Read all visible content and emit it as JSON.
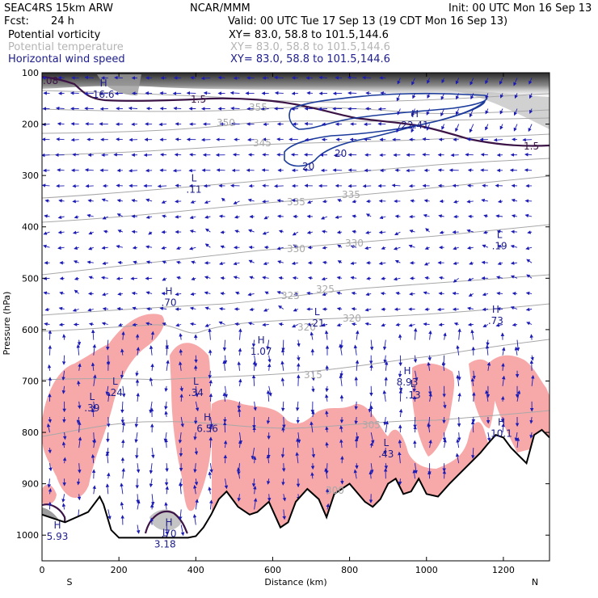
{
  "header": {
    "model": "SEAC4RS 15km ARW",
    "org": "NCAR/MMM",
    "init": "Init: 00 UTC Mon 16 Sep 13",
    "fcst_label": "Fcst:",
    "fcst_value": "24 h",
    "valid": "Valid: 00 UTC Tue 17 Sep 13 (19 CDT Mon 16 Sep 13)"
  },
  "fields": [
    {
      "name": "Potential vorticity",
      "xy": "XY=  83.0, 58.8 to 101.5,144.6",
      "color": "#000000"
    },
    {
      "name": "Potential temperature",
      "xy": "XY=  83.0, 58.8 to 101.5,144.6",
      "color": "#b4b4b4"
    },
    {
      "name": "Horizontal wind speed",
      "xy": "XY=  83.0, 58.8 to 101.5,144.6",
      "color": "#1c1c8c"
    }
  ],
  "colors": {
    "pv_contour": "#3c1446",
    "theta_contour": "#a8a8a8",
    "wind_contour": "#1c3c9c",
    "wind_vectors": "#1c1cb4",
    "moist_shading": "#f7a8a8",
    "terrain": "#000000",
    "hl_labels": "#1c1c8c"
  },
  "chart_data": {
    "type": "cross-section",
    "xlabel": "Distance (km)",
    "ylabel": "Pressure (hPa)",
    "xlim": [
      0,
      1320
    ],
    "ylim": [
      1050,
      100
    ],
    "x_ticks": [
      0,
      200,
      400,
      600,
      800,
      1000,
      1200
    ],
    "y_ticks": [
      100,
      200,
      300,
      400,
      500,
      600,
      700,
      800,
      900,
      1000
    ],
    "end_labels": {
      "left": "S",
      "right": "N"
    },
    "terrain": {
      "x": [
        0,
        60,
        120,
        150,
        160,
        180,
        200,
        300,
        360,
        380,
        400,
        420,
        440,
        460,
        480,
        510,
        540,
        560,
        590,
        620,
        640,
        660,
        690,
        720,
        740,
        760,
        800,
        840,
        860,
        880,
        900,
        920,
        940,
        960,
        980,
        1000,
        1030,
        1060,
        1100,
        1140,
        1160,
        1180,
        1200,
        1220,
        1240,
        1260,
        1280,
        1300,
        1320
      ],
      "p": [
        960,
        975,
        955,
        925,
        940,
        990,
        1005,
        1005,
        1005,
        1005,
        1002,
        985,
        960,
        930,
        915,
        945,
        960,
        955,
        935,
        985,
        975,
        935,
        910,
        930,
        965,
        920,
        900,
        935,
        945,
        930,
        900,
        890,
        920,
        915,
        890,
        920,
        925,
        900,
        870,
        840,
        822,
        805,
        810,
        830,
        845,
        860,
        805,
        795,
        810
      ]
    },
    "theta_contours_K": [
      300,
      305,
      315,
      320,
      325,
      330,
      335,
      345,
      350,
      355,
      360
    ],
    "pv_contour_labels": [
      "1.5",
      "1.5",
      ".08"
    ],
    "wind_speed_contours": [
      20
    ],
    "wind_speed_labels": [
      "20",
      "20",
      "20"
    ],
    "highs_lows": [
      {
        "kind": "H",
        "value": "16.6",
        "x": 160,
        "p": 130
      },
      {
        "kind": "H",
        "value": "22.41",
        "x": 970,
        "p": 190
      },
      {
        "kind": "L",
        "value": ".11",
        "x": 395,
        "p": 315
      },
      {
        "kind": "L",
        "value": ".19",
        "x": 1190,
        "p": 425
      },
      {
        "kind": "H",
        "value": ".70",
        "x": 330,
        "p": 535
      },
      {
        "kind": "L",
        "value": ".21",
        "x": 715,
        "p": 575
      },
      {
        "kind": "H",
        "value": ".73",
        "x": 1180,
        "p": 570
      },
      {
        "kind": "H",
        "value": "1.07",
        "x": 570,
        "p": 630
      },
      {
        "kind": "L",
        "value": ".24",
        "x": 190,
        "p": 710
      },
      {
        "kind": "L",
        "value": ".34",
        "x": 400,
        "p": 710
      },
      {
        "kind": "L",
        "value": ".39",
        "x": 130,
        "p": 740
      },
      {
        "kind": "H",
        "value": "8.93",
        "x": 950,
        "p": 690
      },
      {
        "kind": "L",
        "value": ".13",
        "x": 965,
        "p": 715
      },
      {
        "kind": "H",
        "value": "6.56",
        "x": 430,
        "p": 780
      },
      {
        "kind": "H",
        "value": "10.1",
        "x": 1195,
        "p": 790
      },
      {
        "kind": "L",
        "value": ".43",
        "x": 895,
        "p": 830
      },
      {
        "kind": "H",
        "value": "5.93",
        "x": 40,
        "p": 990
      },
      {
        "kind": "H",
        "value": ".70",
        "x": 330,
        "p": 985
      },
      {
        "kind": "L",
        "value": "3.18",
        "x": 320,
        "p": 1005
      }
    ]
  }
}
